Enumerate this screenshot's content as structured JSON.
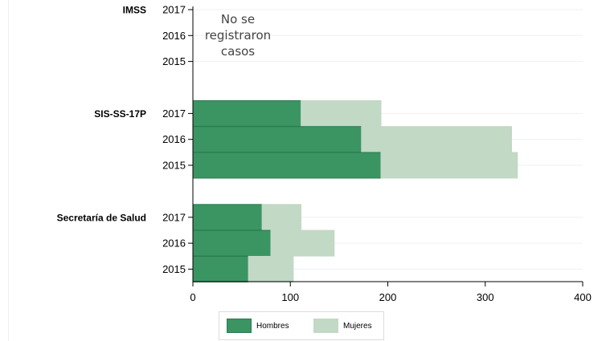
{
  "chart_data": {
    "type": "bar",
    "orientation": "horizontal",
    "stacked": true,
    "groups": [
      {
        "name": "IMSS",
        "rows": [
          {
            "year": "2017",
            "hombres": null,
            "mujeres": null
          },
          {
            "year": "2016",
            "hombres": null,
            "mujeres": null
          },
          {
            "year": "2015",
            "hombres": null,
            "mujeres": null
          }
        ],
        "note_lines": [
          "No se",
          "registraron",
          "casos"
        ]
      },
      {
        "name": "SIS-SS-17P",
        "rows": [
          {
            "year": "2017",
            "hombres": 111,
            "mujeres": 82
          },
          {
            "year": "2016",
            "hombres": 173,
            "mujeres": 154
          },
          {
            "year": "2015",
            "hombres": 193,
            "mujeres": 140
          }
        ]
      },
      {
        "name": "Secretaría de Salud",
        "rows": [
          {
            "year": "2017",
            "hombres": 71,
            "mujeres": 40
          },
          {
            "year": "2016",
            "hombres": 80,
            "mujeres": 65
          },
          {
            "year": "2015",
            "hombres": 57,
            "mujeres": 46
          }
        ]
      }
    ],
    "series": [
      {
        "name": "Hombres",
        "key": "hombres",
        "color": "#3a9563",
        "stroke": "#2b7a4f"
      },
      {
        "name": "Mujeres",
        "key": "mujeres",
        "color": "#c2d9c5",
        "stroke": "#c2d9c5"
      }
    ],
    "xticks": [
      "0",
      "100",
      "200",
      "300",
      "400"
    ],
    "xlim": [
      0,
      400
    ],
    "grid": true,
    "legend_position": "bottom"
  }
}
